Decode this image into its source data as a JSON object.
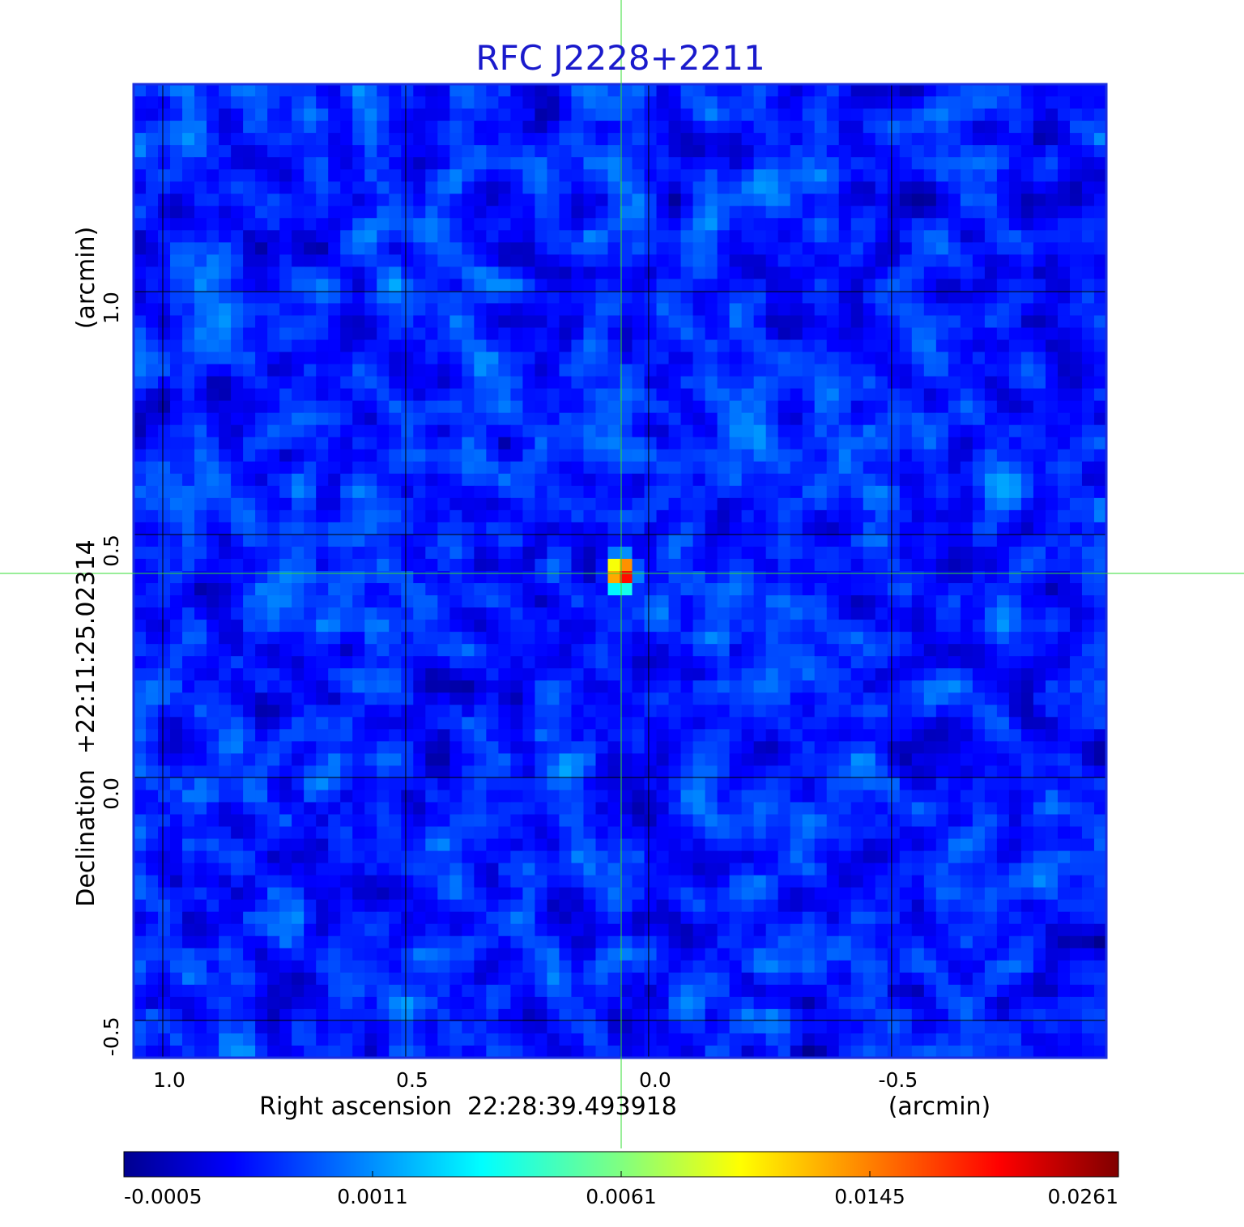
{
  "chart_data": {
    "type": "image",
    "title": "RFC J2228+2211",
    "x_label": "Right ascension  22:28:39.493918",
    "x_unit": "(arcmin)",
    "y_label": "Declination  +22:11:25.02314",
    "y_unit": "(arcmin)",
    "xlim": [
      1.06,
      -0.942
    ],
    "ylim": [
      -0.577,
      1.427
    ],
    "xticks": [
      {
        "value": 1,
        "label": "1.0"
      },
      0.5,
      {
        "value": 0,
        "label": "0.0"
      },
      -0.5
    ],
    "yticks": [
      -0.5,
      {
        "value": 0,
        "label": "0.0"
      },
      0.5,
      {
        "value": 1,
        "label": "1.0"
      }
    ],
    "grid": true,
    "colorbar_ticks": [
      -0.0005,
      0.0011,
      0.0061,
      0.0145,
      0.0261
    ]
  }
}
